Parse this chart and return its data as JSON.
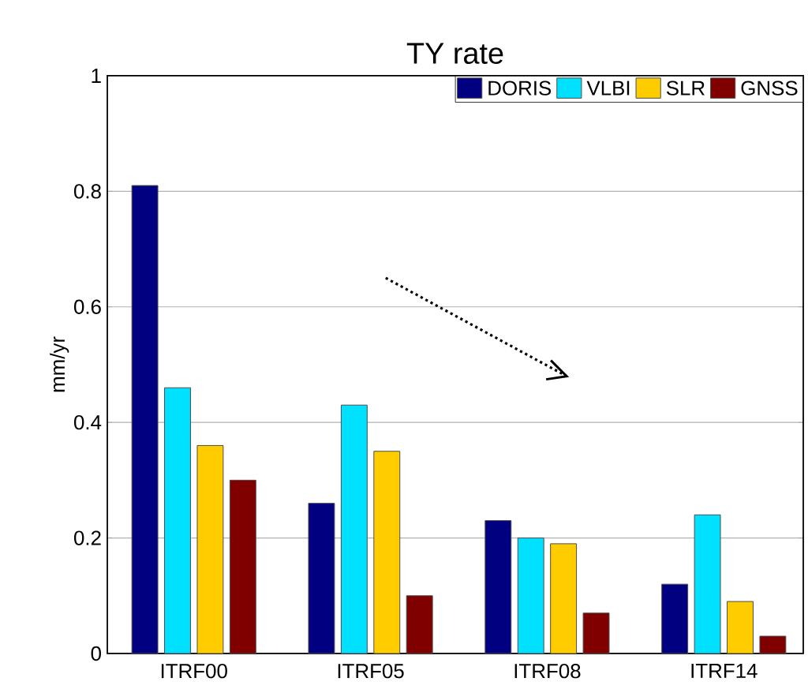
{
  "chart_data": {
    "type": "bar",
    "title": "TY rate",
    "ylabel": "mm/yr",
    "categories": [
      "ITRF00",
      "ITRF05",
      "ITRF08",
      "ITRF14"
    ],
    "series": [
      {
        "name": "DORIS",
        "color": "#000080",
        "values": [
          0.81,
          0.26,
          0.23,
          0.12
        ]
      },
      {
        "name": "VLBI",
        "color": "#00e0ff",
        "values": [
          0.46,
          0.43,
          0.2,
          0.24
        ]
      },
      {
        "name": "SLR",
        "color": "#ffcc00",
        "values": [
          0.36,
          0.35,
          0.19,
          0.09
        ]
      },
      {
        "name": "GNSS",
        "color": "#800000",
        "values": [
          0.3,
          0.1,
          0.07,
          0.03
        ]
      }
    ],
    "ylim": [
      0,
      1
    ],
    "yticks": [
      0,
      0.2,
      0.4,
      0.6,
      0.8,
      1
    ],
    "grid": "y",
    "legend": "top right"
  }
}
